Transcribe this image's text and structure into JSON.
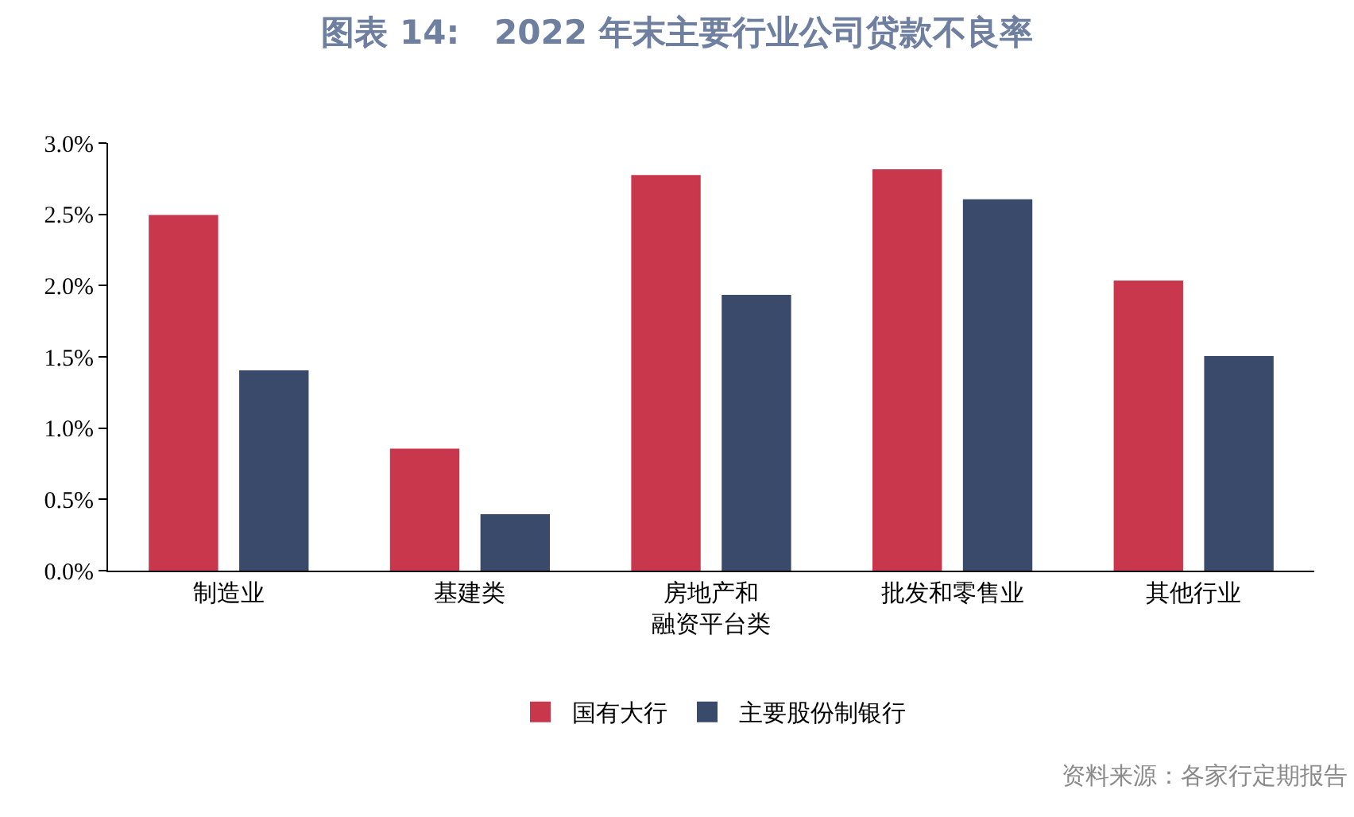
{
  "chart_data": {
    "type": "bar",
    "title": "图表 14:   2022 年末主要行业公司贷款不良率",
    "categories": [
      "制造业",
      "基建类",
      "房地产和融资平台类",
      "批发和零售业",
      "其他行业"
    ],
    "series": [
      {
        "name": "国有大行",
        "color": "#c9374c",
        "values": [
          2.49,
          0.85,
          2.77,
          2.81,
          2.03
        ]
      },
      {
        "name": "主要股份制银行",
        "color": "#3a4a6b",
        "values": [
          1.4,
          0.39,
          1.93,
          2.6,
          1.5
        ]
      }
    ],
    "ylim": [
      0,
      3.0
    ],
    "yticks": [
      {
        "value": 0,
        "label": "0.0%"
      },
      {
        "value": 0.5,
        "label": "0.5%"
      },
      {
        "value": 1.0,
        "label": "1.0%"
      },
      {
        "value": 1.5,
        "label": "1.5%"
      },
      {
        "value": 2.0,
        "label": "2.0%"
      },
      {
        "value": 2.5,
        "label": "2.5%"
      },
      {
        "value": 3.0,
        "label": "3.0%"
      }
    ],
    "grid": false,
    "legend": "bottom",
    "annotations": [
      "资料来源：各家行定期报告"
    ]
  }
}
